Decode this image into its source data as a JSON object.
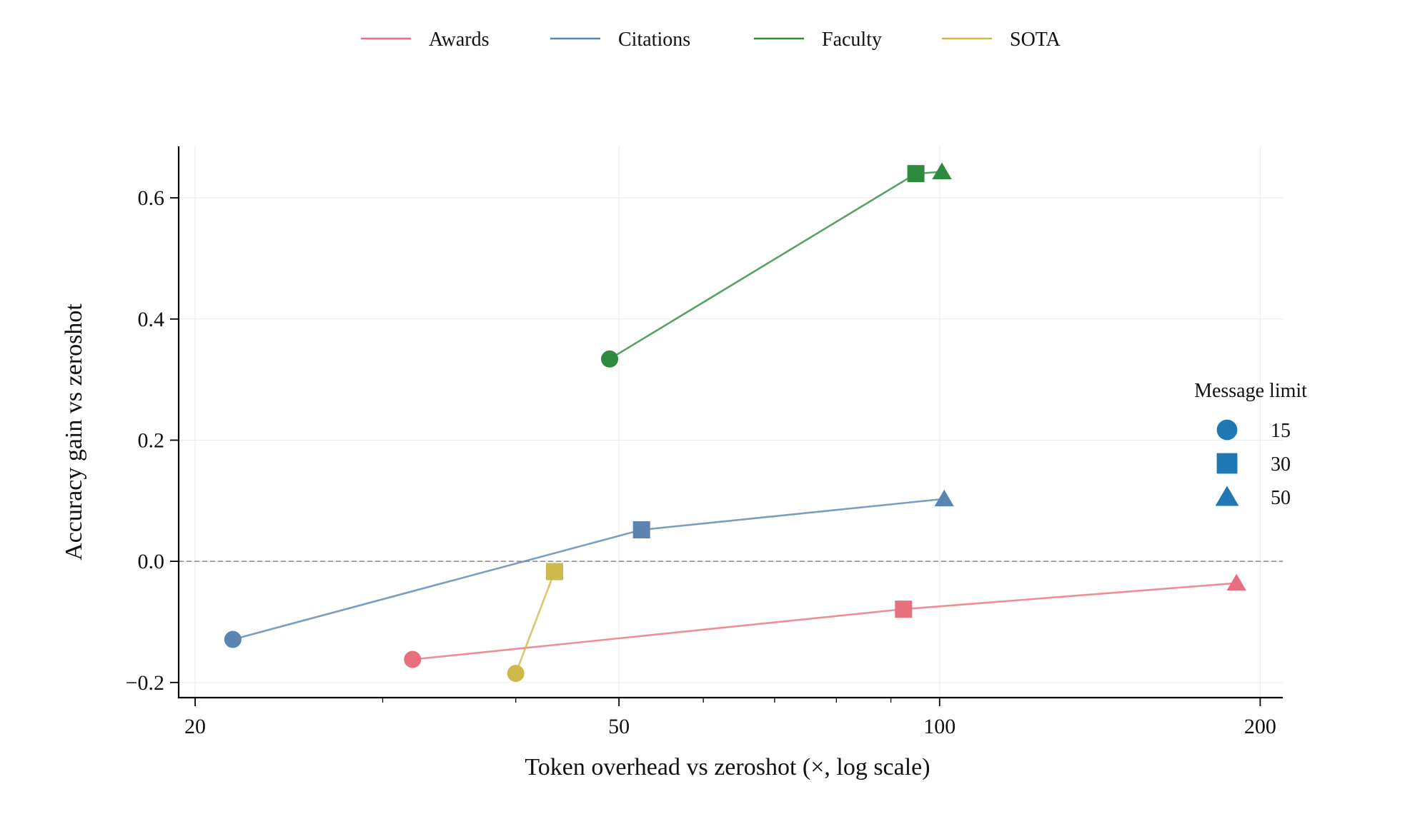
{
  "chart_data": {
    "type": "line",
    "title": "",
    "xlabel": "Token overhead vs zeroshot (×, log scale)",
    "ylabel": "Accuracy gain vs zeroshot",
    "xscale": "log",
    "xlim": [
      19.3,
      210
    ],
    "ylim": [
      -0.225,
      0.685
    ],
    "xticks": [
      {
        "value": 20,
        "label": "20"
      },
      {
        "value": 50,
        "label": "50"
      },
      {
        "value": 100,
        "label": "100"
      },
      {
        "value": 200,
        "label": "200"
      }
    ],
    "yticks": [
      {
        "value": -0.2,
        "label": "−0.2"
      },
      {
        "value": 0.0,
        "label": "0.0"
      },
      {
        "value": 0.2,
        "label": "0.2"
      },
      {
        "value": 0.4,
        "label": "0.4"
      },
      {
        "value": 0.6,
        "label": "0.6"
      }
    ],
    "reference_line": {
      "y": 0.0,
      "style": "dashed",
      "color": "#888888"
    },
    "grid": true,
    "series": [
      {
        "name": "Awards",
        "color": "#E8707E",
        "points": [
          {
            "x": 32.0,
            "y": -0.162,
            "limit": "15"
          },
          {
            "x": 92.5,
            "y": -0.079,
            "limit": "30"
          },
          {
            "x": 190.0,
            "y": -0.036,
            "limit": "50"
          }
        ]
      },
      {
        "name": "Citations",
        "color": "#5B84B1",
        "points": [
          {
            "x": 21.7,
            "y": -0.129,
            "limit": "15"
          },
          {
            "x": 52.5,
            "y": 0.052,
            "limit": "30"
          },
          {
            "x": 101.0,
            "y": 0.103,
            "limit": "50"
          }
        ]
      },
      {
        "name": "Faculty",
        "color": "#2E8B3E",
        "points": [
          {
            "x": 49.0,
            "y": 0.334,
            "limit": "15"
          },
          {
            "x": 95.0,
            "y": 0.64,
            "limit": "30"
          },
          {
            "x": 100.5,
            "y": 0.643,
            "limit": "50"
          }
        ]
      },
      {
        "name": "SOTA",
        "color": "#CDB94A",
        "points": [
          {
            "x": 40.0,
            "y": -0.185,
            "limit": "15"
          },
          {
            "x": 43.5,
            "y": -0.017,
            "limit": "30"
          }
        ]
      }
    ],
    "legend": {
      "position": "top-center",
      "entries": [
        "Awards",
        "Citations",
        "Faculty",
        "SOTA"
      ]
    },
    "marker_legend": {
      "title": "Message limit",
      "position": "right",
      "color": "#1F77B4",
      "entries": [
        {
          "label": "15",
          "marker": "circle"
        },
        {
          "label": "30",
          "marker": "square"
        },
        {
          "label": "50",
          "marker": "triangle"
        }
      ]
    }
  }
}
